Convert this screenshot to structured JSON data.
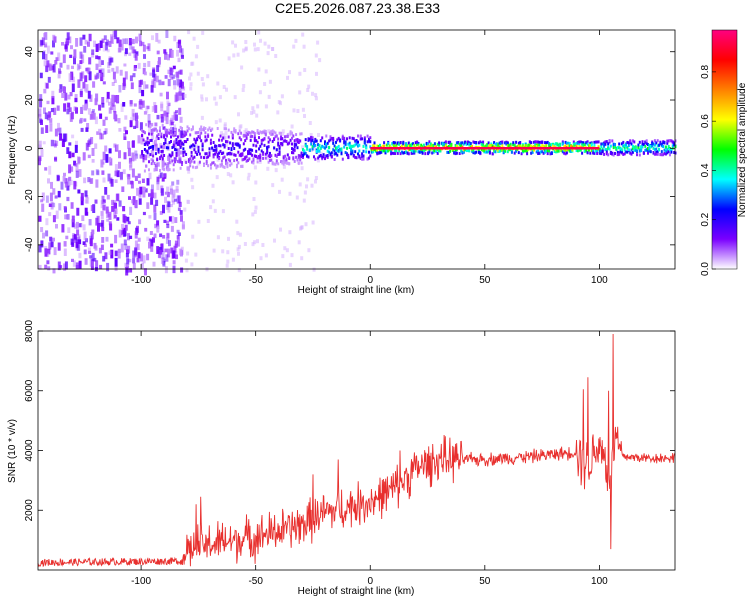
{
  "title": "C2E5.2026.087.23.38.E33",
  "chart_data": [
    {
      "type": "heatmap",
      "name": "spectrogram",
      "xlabel": "Height of straight line (km)",
      "ylabel": "Frequency (Hz)",
      "xlim": [
        -145,
        133
      ],
      "ylim": [
        -50,
        49
      ],
      "xticks": [
        -100,
        -50,
        0,
        50,
        100
      ],
      "yticks": [
        -40,
        -20,
        0,
        20,
        40
      ],
      "colorbar": {
        "label": "Normalized spectral amplitude",
        "range": [
          0.0,
          0.97
        ],
        "ticks": [
          0.0,
          0.2,
          0.4,
          0.6,
          0.8
        ],
        "colormap": [
          "#ffffff",
          "#7a00ff",
          "#0000ff",
          "#00ffff",
          "#00ff00",
          "#ffff00",
          "#ff8000",
          "#ff0000",
          "#ff0080"
        ]
      },
      "description_regions": [
        {
          "x": [
            -145,
            -82
          ],
          "freq": [
            -50,
            49
          ],
          "amplitude": 0.05
        },
        {
          "x": [
            -100,
            -30
          ],
          "freq": [
            -10,
            10
          ],
          "amplitude": 0.25
        },
        {
          "x": [
            -30,
            0
          ],
          "freq": [
            -4,
            4
          ],
          "amplitude": 0.5
        },
        {
          "x": [
            0,
            100
          ],
          "freq": [
            -1,
            1
          ],
          "amplitude": 0.95
        },
        {
          "x": [
            100,
            133
          ],
          "freq": [
            -2,
            2
          ],
          "amplitude": 0.45
        }
      ]
    },
    {
      "type": "line",
      "name": "snr",
      "xlabel": "Height of straight line (km)",
      "ylabel": "SNR (10 * v/v)",
      "xlim": [
        -145,
        133
      ],
      "ylim": [
        0,
        8000
      ],
      "xticks": [
        -100,
        -50,
        0,
        50,
        100
      ],
      "yticks": [
        2000,
        4000,
        6000,
        8000
      ],
      "color": "#e8302e",
      "trend": {
        "x": [
          -145,
          -82,
          -80,
          -75,
          -50,
          -30,
          -20,
          0,
          10,
          20,
          30,
          40,
          50,
          70,
          90,
          95,
          100,
          105,
          107,
          110,
          120,
          133
        ],
        "y": [
          250,
          300,
          700,
          800,
          1100,
          1500,
          1900,
          2300,
          2700,
          3400,
          3700,
          3700,
          3700,
          3800,
          3950,
          3500,
          4300,
          3000,
          4500,
          3800,
          3750,
          3750
        ]
      },
      "spikes": [
        {
          "x": -74,
          "y": 2450
        },
        {
          "x": -76,
          "y": 2200
        },
        {
          "x": -25,
          "y": 3200
        },
        {
          "x": -14,
          "y": 3700
        },
        {
          "x": 13,
          "y": 4000
        },
        {
          "x": 93,
          "y": 6050
        },
        {
          "x": 95,
          "y": 6450
        },
        {
          "x": 104,
          "y": 6000
        },
        {
          "x": 106,
          "y": 7900
        },
        {
          "x": 105,
          "y": 700
        }
      ]
    }
  ]
}
